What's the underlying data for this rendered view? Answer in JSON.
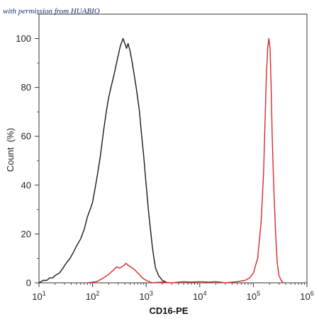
{
  "watermark": "with permission from HUABIO",
  "chart_data": {
    "type": "line",
    "xlabel": "CD16-PE",
    "ylabel": "Count  (%)",
    "x_scale": "log",
    "xlim": [
      10,
      1000000
    ],
    "ylim": [
      0,
      110
    ],
    "x_ticks": [
      {
        "base": "10",
        "exp": "1",
        "value": 10
      },
      {
        "base": "10",
        "exp": "2",
        "value": 100
      },
      {
        "base": "10",
        "exp": "3",
        "value": 1000
      },
      {
        "base": "10",
        "exp": "4",
        "value": 10000
      },
      {
        "base": "10",
        "exp": "5",
        "value": 100000
      },
      {
        "base": "10",
        "exp": "6",
        "value": 1000000
      }
    ],
    "y_ticks": [
      "0",
      "20",
      "40",
      "60",
      "80",
      "100"
    ],
    "y_tick_values": [
      0,
      20,
      40,
      60,
      80,
      100
    ],
    "grid": false,
    "series": [
      {
        "color": "#1a1a1a",
        "points": [
          [
            10,
            0
          ],
          [
            11,
            0.5
          ],
          [
            12,
            1
          ],
          [
            14,
            1
          ],
          [
            16,
            2
          ],
          [
            18,
            2
          ],
          [
            20,
            3
          ],
          [
            24,
            4
          ],
          [
            28,
            6
          ],
          [
            32,
            8
          ],
          [
            38,
            10
          ],
          [
            45,
            13
          ],
          [
            50,
            15
          ],
          [
            60,
            18
          ],
          [
            70,
            22
          ],
          [
            80,
            27
          ],
          [
            90,
            30
          ],
          [
            100,
            33
          ],
          [
            110,
            38
          ],
          [
            125,
            45
          ],
          [
            140,
            52
          ],
          [
            160,
            62
          ],
          [
            180,
            70
          ],
          [
            200,
            76
          ],
          [
            220,
            80
          ],
          [
            250,
            85
          ],
          [
            280,
            90
          ],
          [
            300,
            93
          ],
          [
            330,
            97
          ],
          [
            370,
            100
          ],
          [
            400,
            98
          ],
          [
            430,
            96
          ],
          [
            460,
            98
          ],
          [
            500,
            95
          ],
          [
            550,
            90
          ],
          [
            600,
            85
          ],
          [
            650,
            80
          ],
          [
            700,
            75
          ],
          [
            750,
            70
          ],
          [
            800,
            63
          ],
          [
            900,
            52
          ],
          [
            1000,
            40
          ],
          [
            1100,
            30
          ],
          [
            1200,
            22
          ],
          [
            1300,
            15
          ],
          [
            1400,
            10
          ],
          [
            1500,
            6
          ],
          [
            1700,
            3
          ],
          [
            2000,
            1
          ],
          [
            2500,
            0
          ]
        ]
      },
      {
        "color": "#d42b2b",
        "points": [
          [
            80,
            0
          ],
          [
            120,
            0.5
          ],
          [
            160,
            2
          ],
          [
            200,
            3.5
          ],
          [
            240,
            5
          ],
          [
            280,
            6.5
          ],
          [
            320,
            6
          ],
          [
            380,
            7
          ],
          [
            420,
            8
          ],
          [
            470,
            7
          ],
          [
            520,
            6.5
          ],
          [
            600,
            5.5
          ],
          [
            700,
            4
          ],
          [
            850,
            2
          ],
          [
            1000,
            1
          ],
          [
            1300,
            0
          ],
          [
            2000,
            0.3
          ],
          [
            3000,
            0
          ],
          [
            5000,
            0.5
          ],
          [
            7000,
            0.3
          ],
          [
            10000,
            0.5
          ],
          [
            15000,
            0.3
          ],
          [
            20000,
            0.5
          ],
          [
            30000,
            0
          ],
          [
            50000,
            0.5
          ],
          [
            70000,
            1
          ],
          [
            85000,
            2
          ],
          [
            100000,
            4
          ],
          [
            120000,
            10
          ],
          [
            140000,
            25
          ],
          [
            155000,
            45
          ],
          [
            165000,
            65
          ],
          [
            175000,
            85
          ],
          [
            185000,
            96
          ],
          [
            195000,
            100
          ],
          [
            205000,
            96
          ],
          [
            215000,
            80
          ],
          [
            225000,
            60
          ],
          [
            240000,
            40
          ],
          [
            260000,
            20
          ],
          [
            280000,
            8
          ],
          [
            300000,
            3
          ],
          [
            330000,
            1
          ],
          [
            360000,
            0
          ]
        ]
      }
    ]
  }
}
